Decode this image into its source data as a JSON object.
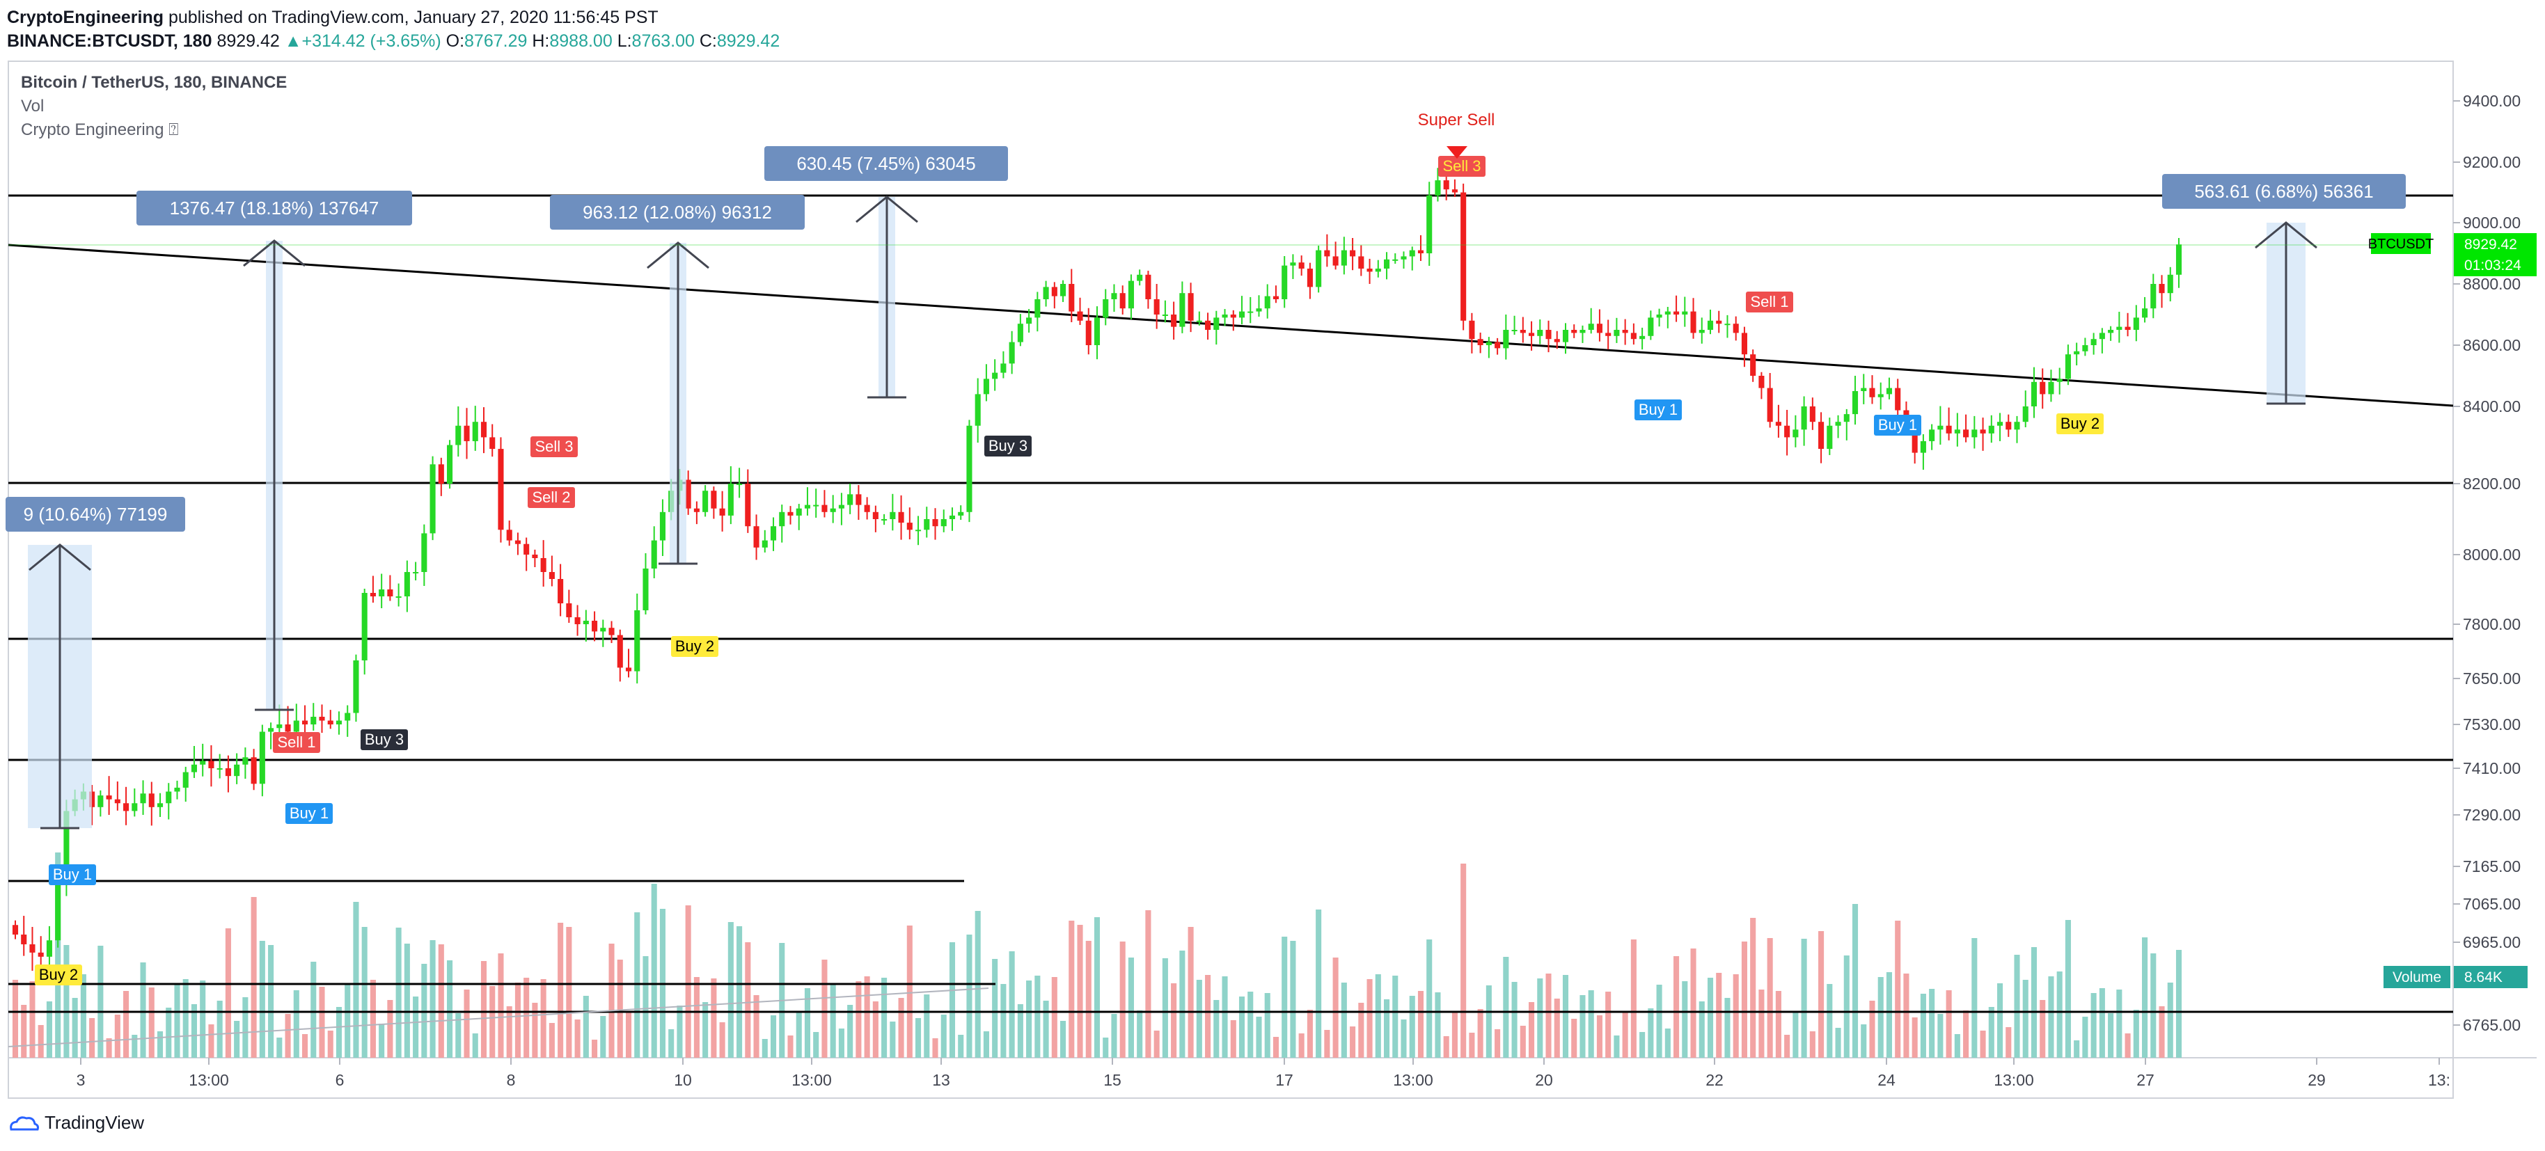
{
  "header": {
    "author": "CryptoEngineering",
    "published_text": "published on TradingView.com, January 27, 2020 11:56:45 PST",
    "symbol": "BINANCE:BTCUSDT, 180",
    "last": "8929.42",
    "arrow": "▲",
    "change": "+314.42 (+3.65%)",
    "o_label": "O:",
    "o": "8767.29",
    "h_label": "H:",
    "h": "8988.00",
    "l_label": "L:",
    "l": "8763.00",
    "c_label": "C:",
    "c": "8929.42"
  },
  "legend": {
    "title": "Bitcoin / TetherUS, 180, BINANCE",
    "vol": "Vol",
    "indicator": "Crypto Engineering ⍰"
  },
  "footer": {
    "brand": "TradingView"
  },
  "colors": {
    "up": "#26d826",
    "down": "#ef1f1f",
    "vol_up": "#8fd3c9",
    "vol_down": "#f2a3a3",
    "box": "#6e8fbf",
    "sell": "#ef4e4e",
    "buy": "#2196f3",
    "buy2": "#ffeb3b",
    "buy3": "#2a2e39"
  },
  "chart_data": {
    "type": "candlestick",
    "symbol": "BTCUSDT",
    "y_ticks": [
      "9400.00",
      "9200.00",
      "9000.00",
      "8800.00",
      "8600.00",
      "8400.00",
      "8200.00",
      "8000.00",
      "7800.00",
      "7650.00",
      "7530.00",
      "7410.00",
      "7290.00",
      "7165.00",
      "7065.00",
      "6965.00",
      "6765.00"
    ],
    "x_ticks": [
      "3",
      "13:00",
      "6",
      "8",
      "10",
      "13:00",
      "13",
      "15",
      "17",
      "13:00",
      "20",
      "22",
      "24",
      "13:00",
      "27",
      "29",
      "13:"
    ],
    "price_label": "8929.42",
    "countdown": "01:03:24",
    "volume_label": "Volume",
    "volume_value": "8.64K",
    "measures": [
      {
        "text": "9 (10.64%) 77199"
      },
      {
        "text": "1376.47 (18.18%) 137647"
      },
      {
        "text": "963.12 (12.08%) 96312"
      },
      {
        "text": "630.45 (7.45%) 63045"
      },
      {
        "text": "563.61 (6.68%) 56361"
      }
    ],
    "signals": [
      {
        "text": "Buy 1",
        "type": "buy"
      },
      {
        "text": "Buy 2",
        "type": "buy2"
      },
      {
        "text": "Buy 1",
        "type": "buy"
      },
      {
        "text": "Sell 1",
        "type": "sell"
      },
      {
        "text": "Buy 3",
        "type": "buy3"
      },
      {
        "text": "Sell 3",
        "type": "sell"
      },
      {
        "text": "Sell 2",
        "type": "sell"
      },
      {
        "text": "Buy 2",
        "type": "buy2"
      },
      {
        "text": "Buy 3",
        "type": "buy3"
      },
      {
        "text": "Sell 3",
        "type": "sell"
      },
      {
        "text": "Buy 1",
        "type": "buy"
      },
      {
        "text": "Sell 1",
        "type": "sell"
      },
      {
        "text": "Buy 1",
        "type": "buy"
      },
      {
        "text": "Buy 2",
        "type": "buy2"
      }
    ],
    "super_sell": "Super Sell",
    "closes": [
      6985,
      6960,
      6940,
      6930,
      6970,
      7120,
      7300,
      7330,
      7350,
      7310,
      7340,
      7330,
      7320,
      7300,
      7320,
      7345,
      7310,
      7320,
      7350,
      7360,
      7400,
      7420,
      7430,
      7410,
      7410,
      7390,
      7420,
      7440,
      7370,
      7510,
      7520,
      7530,
      7510,
      7540,
      7530,
      7550,
      7540,
      7530,
      7540,
      7560,
      7700,
      7890,
      7880,
      7900,
      7880,
      7880,
      7950,
      7950,
      8060,
      8250,
      8200,
      8300,
      8350,
      8310,
      8360,
      8320,
      8290,
      8070,
      8040,
      8030,
      8000,
      7990,
      7950,
      7930,
      7860,
      7820,
      7800,
      7810,
      7780,
      7790,
      7770,
      7680,
      7670,
      7840,
      7960,
      8040,
      8120,
      8180,
      8210,
      8130,
      8120,
      8180,
      8130,
      8110,
      8200,
      8200,
      8080,
      8020,
      8040,
      8080,
      8120,
      8110,
      8130,
      8140,
      8140,
      8120,
      8130,
      8140,
      8170,
      8140,
      8120,
      8100,
      8100,
      8120,
      8090,
      8070,
      8070,
      8100,
      8080,
      8100,
      8110,
      8120,
      8350,
      8440,
      8490,
      8510,
      8540,
      8610,
      8670,
      8690,
      8750,
      8790,
      8760,
      8800,
      8710,
      8680,
      8600,
      8690,
      8750,
      8770,
      8720,
      8810,
      8830,
      8750,
      8700,
      8700,
      8660,
      8770,
      8680,
      8680,
      8650,
      8690,
      8700,
      8690,
      8710,
      8710,
      8720,
      8760,
      8750,
      8860,
      8870,
      8850,
      8790,
      8910,
      8890,
      8860,
      8910,
      8890,
      8850,
      8840,
      8850,
      8880,
      8880,
      8890,
      8910,
      8900,
      9090,
      9140,
      9110,
      9100,
      8680,
      8620,
      8600,
      8610,
      8590,
      8650,
      8650,
      8640,
      8630,
      8650,
      8620,
      8610,
      8650,
      8640,
      8650,
      8670,
      8640,
      8630,
      8650,
      8640,
      8620,
      8630,
      8690,
      8700,
      8710,
      8700,
      8710,
      8640,
      8650,
      8680,
      8670,
      8670,
      8640,
      8570,
      8500,
      8460,
      8360,
      8350,
      8320,
      8340,
      8400,
      8360,
      8290,
      8350,
      8360,
      8380,
      8450,
      8460,
      8430,
      8440,
      8460,
      8390,
      8340,
      8280,
      8310,
      8340,
      8350,
      8330,
      8340,
      8320,
      8340,
      8330,
      8350,
      8360,
      8340,
      8360,
      8400,
      8480,
      8440,
      8480,
      8490,
      8570,
      8580,
      8600,
      8620,
      8640,
      8650,
      8660,
      8650,
      8690,
      8720,
      8800,
      8770,
      8830,
      8929
    ]
  }
}
